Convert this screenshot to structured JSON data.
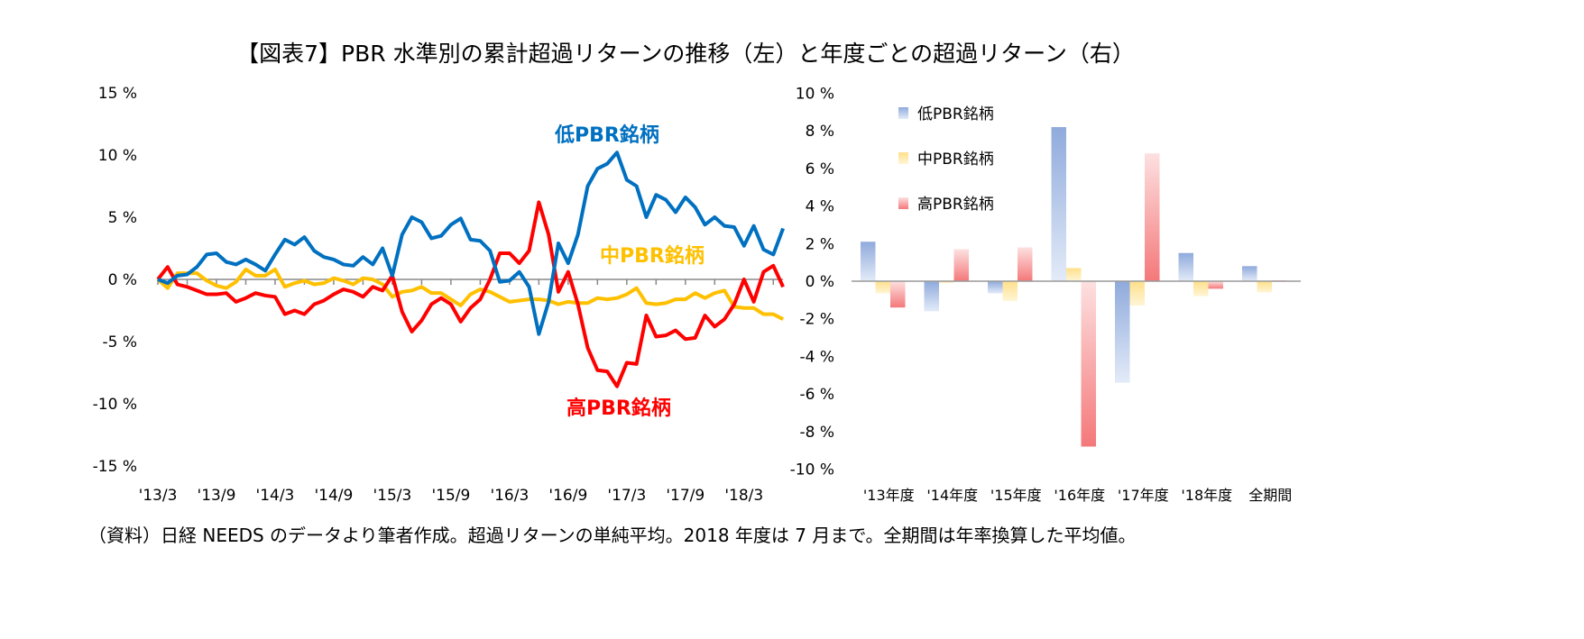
{
  "title": "【図表7】PBR 水準別の累計超過リターンの推移（左）と年度ごとの超過リターン（右）",
  "footnote": "（資料）日経 NEEDS のデータより筆者作成。超過リターンの単純平均。2018 年度は 7 月まで。全期間は年率換算した平均値。",
  "chart_data": [
    {
      "type": "line",
      "x_start": "2013/3",
      "x_end": "2018/7",
      "x_frequency": "monthly",
      "xtick_labels": [
        "'13/3",
        "'13/9",
        "'14/3",
        "'14/9",
        "'15/3",
        "'15/9",
        "'16/3",
        "'16/9",
        "'17/3",
        "'17/9",
        "'18/3"
      ],
      "ytick_labels": [
        "15 %",
        "10 %",
        "5 %",
        "0 %",
        "-5 %",
        "-10 %",
        "-15 %"
      ],
      "ylim": [
        -15,
        15
      ],
      "yticks": [
        15,
        10,
        5,
        0,
        -5,
        -10,
        -15
      ],
      "unit": "%",
      "grid": false,
      "series": [
        {
          "name": "低PBR銘柄",
          "color": "#0070c0",
          "values": [
            0,
            -0.3,
            0.3,
            0.4,
            1.0,
            2.0,
            2.1,
            1.4,
            1.2,
            1.6,
            1.2,
            0.7,
            2.0,
            3.2,
            2.8,
            3.4,
            2.3,
            1.8,
            1.6,
            1.2,
            1.1,
            1.8,
            1.2,
            2.5,
            0.3,
            3.6,
            5.0,
            4.6,
            3.3,
            3.5,
            4.4,
            4.9,
            3.2,
            3.1,
            2.3,
            -0.2,
            -0.1,
            0.6,
            -0.6,
            -4.4,
            -1.8,
            2.9,
            1.3,
            3.6,
            7.5,
            8.9,
            9.3,
            10.2,
            8.0,
            7.5,
            5.0,
            6.8,
            6.4,
            5.4,
            6.6,
            5.8,
            4.4,
            5.0,
            4.3,
            4.2,
            2.7,
            4.3,
            2.4,
            2.0,
            4.1
          ]
        },
        {
          "name": "中PBR銘柄",
          "color": "#ffc000",
          "values": [
            0,
            -0.7,
            0.5,
            0.5,
            0.5,
            -0.1,
            -0.5,
            -0.7,
            -0.2,
            0.8,
            0.3,
            0.3,
            0.8,
            -0.6,
            -0.3,
            -0.1,
            -0.4,
            -0.3,
            0.1,
            -0.1,
            -0.4,
            0.1,
            0.0,
            -0.4,
            -1.4,
            -1.0,
            -0.9,
            -0.6,
            -1.1,
            -1.1,
            -1.6,
            -2.1,
            -1.2,
            -0.8,
            -1.0,
            -1.4,
            -1.8,
            -1.7,
            -1.6,
            -1.6,
            -1.7,
            -2.0,
            -1.8,
            -1.9,
            -1.9,
            -1.5,
            -1.6,
            -1.5,
            -1.2,
            -0.7,
            -1.9,
            -2.0,
            -1.9,
            -1.6,
            -1.6,
            -1.1,
            -1.5,
            -1.1,
            -0.9,
            -2.2,
            -2.3,
            -2.3,
            -2.8,
            -2.8,
            -3.2
          ]
        },
        {
          "name": "高PBR銘柄",
          "color": "#ff0000",
          "values": [
            0,
            1.0,
            -0.4,
            -0.6,
            -0.9,
            -1.2,
            -1.2,
            -1.1,
            -1.8,
            -1.5,
            -1.1,
            -1.3,
            -1.4,
            -2.8,
            -2.5,
            -2.8,
            -2.0,
            -1.7,
            -1.2,
            -0.8,
            -1.0,
            -1.4,
            -0.6,
            -0.9,
            0.3,
            -2.6,
            -4.2,
            -3.3,
            -2.0,
            -1.5,
            -2.0,
            -3.4,
            -2.3,
            -1.6,
            0.0,
            2.1,
            2.1,
            1.3,
            2.3,
            6.2,
            3.6,
            -1.0,
            0.6,
            -2.0,
            -5.5,
            -7.3,
            -7.4,
            -8.6,
            -6.7,
            -6.8,
            -2.9,
            -4.6,
            -4.5,
            -4.1,
            -4.8,
            -4.7,
            -2.9,
            -3.8,
            -3.2,
            -2.0,
            0.0,
            -1.8,
            0.6,
            1.1,
            -0.6
          ]
        }
      ]
    },
    {
      "type": "bar",
      "categories": [
        "'13年度",
        "'14年度",
        "'15年度",
        "'16年度",
        "'17年度",
        "'18年度",
        "全期間"
      ],
      "ytick_labels": [
        "10 %",
        "8 %",
        "6 %",
        "4 %",
        "2 %",
        "0 %",
        "-2 %",
        "-4 %",
        "-6 %",
        "-8 %",
        "-10 %"
      ],
      "yticks": [
        10,
        8,
        6,
        4,
        2,
        0,
        -2,
        -4,
        -6,
        -8,
        -10
      ],
      "ylim": [
        -10,
        10
      ],
      "unit": "%",
      "grid": false,
      "legend_position": "top-left",
      "series": [
        {
          "name": "低PBR銘柄",
          "color": "#8faadc",
          "values": [
            2.1,
            -1.6,
            -0.65,
            8.2,
            -5.4,
            1.5,
            0.8
          ]
        },
        {
          "name": "中PBR銘柄",
          "color": "#ffe699",
          "values": [
            -0.65,
            -0.1,
            -1.05,
            0.7,
            -1.3,
            -0.8,
            -0.6
          ]
        },
        {
          "name": "高PBR銘柄",
          "color": "#f4787a",
          "values": [
            -1.4,
            1.7,
            1.8,
            -8.8,
            6.8,
            -0.4,
            0.05
          ]
        }
      ]
    }
  ]
}
